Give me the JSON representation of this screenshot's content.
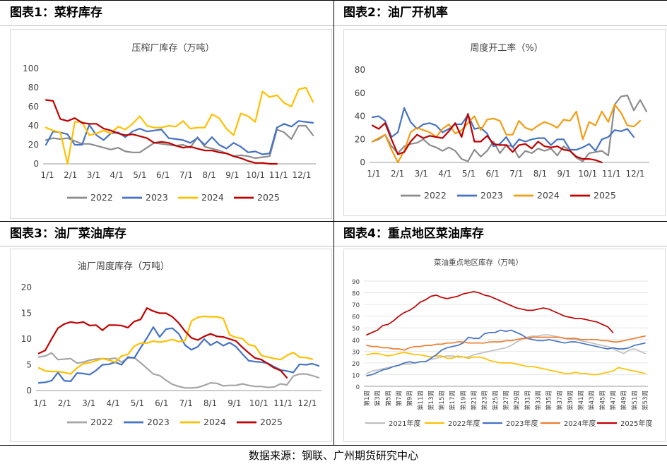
{
  "panels": [
    {
      "title": "图表1：菜籽库存"
    },
    {
      "title": "图表2：油厂开机率"
    },
    {
      "title": "图表3：油厂菜油库存"
    },
    {
      "title": "图表4：重点地区菜油库存"
    }
  ],
  "source": "数据来源：钢联、广州期货研究中心",
  "chart_data": [
    {
      "type": "line",
      "title": "压榨厂库存（万吨）",
      "ylim": [
        0,
        100
      ],
      "yticks": [
        "0",
        "20",
        "40",
        "60",
        "80",
        "100"
      ],
      "xticks": [
        "1/1",
        "2/1",
        "3/1",
        "4/1",
        "5/1",
        "6/1",
        "7/1",
        "8/1",
        "9/1",
        "10/1",
        "11/1",
        "12/1"
      ],
      "series": [
        {
          "name": "2022",
          "color": "#8c8c8c",
          "values": [
            25,
            27,
            26,
            27,
            24,
            21,
            21,
            19,
            17,
            15,
            17,
            13,
            12,
            12,
            17,
            22,
            21,
            20,
            19,
            20,
            17,
            28,
            18,
            16,
            14,
            11,
            8,
            9,
            8,
            6,
            7,
            8,
            36,
            33,
            26,
            40,
            40,
            30
          ]
        },
        {
          "name": "2023",
          "color": "#4472c4",
          "values": [
            20,
            34,
            33,
            31,
            20,
            20,
            41,
            30,
            25,
            32,
            33,
            28,
            34,
            37,
            34,
            35,
            36,
            27,
            26,
            25,
            22,
            27,
            20,
            28,
            20,
            16,
            22,
            18,
            12,
            13,
            10,
            11,
            38,
            42,
            39,
            45,
            44,
            43
          ]
        },
        {
          "name": "2024",
          "color": "#ffc000",
          "values": [
            38,
            35,
            33,
            0,
            44,
            44,
            30,
            32,
            35,
            32,
            39,
            36,
            42,
            50,
            40,
            38,
            38,
            40,
            39,
            45,
            37,
            38,
            38,
            52,
            48,
            37,
            30,
            53,
            50,
            44,
            76,
            70,
            72,
            64,
            60,
            78,
            80,
            65
          ]
        },
        {
          "name": "2025",
          "color": "#c00000",
          "values": [
            67,
            66,
            47,
            45,
            48,
            43,
            42,
            42,
            37,
            35,
            32,
            30,
            31,
            29,
            27,
            22,
            23,
            22,
            19,
            17,
            18,
            16,
            14,
            14,
            12,
            11,
            8,
            6,
            3,
            1,
            1,
            0,
            0
          ]
        }
      ]
    },
    {
      "type": "line",
      "title": "周度开工率（%）",
      "ylim": [
        0,
        80
      ],
      "yticks": [
        "0",
        "20",
        "40",
        "60",
        "80"
      ],
      "xticks": [
        "1/1",
        "2/1",
        "3/1",
        "4/1",
        "5/1",
        "6/1",
        "7/1",
        "8/1",
        "9/1",
        "10/1",
        "11/1",
        "12/1"
      ],
      "series": [
        {
          "name": "2022",
          "color": "#8c8c8c",
          "values": [
            18,
            20,
            24,
            14,
            8,
            14,
            16,
            17,
            20,
            15,
            13,
            10,
            13,
            10,
            3,
            1,
            11,
            5,
            10,
            18,
            8,
            15,
            14,
            4,
            10,
            8,
            12,
            10,
            12,
            6,
            14,
            10,
            4,
            1,
            8,
            9,
            10,
            6,
            50,
            57,
            58,
            45,
            54,
            44
          ]
        },
        {
          "name": "2023",
          "color": "#4472c4",
          "values": [
            39,
            40,
            36,
            22,
            26,
            47,
            35,
            29,
            33,
            34,
            32,
            26,
            29,
            33,
            33,
            41,
            29,
            30,
            25,
            14,
            16,
            22,
            13,
            20,
            18,
            20,
            21,
            21,
            15,
            20,
            20,
            11,
            11,
            13,
            16,
            10,
            20,
            22,
            28,
            27,
            29,
            22
          ]
        },
        {
          "name": "2024",
          "color": "#f39c12",
          "values": [
            18,
            21,
            24,
            11,
            0,
            10,
            26,
            30,
            28,
            26,
            22,
            29,
            33,
            25,
            28,
            34,
            40,
            28,
            37,
            38,
            36,
            24,
            24,
            36,
            30,
            28,
            32,
            35,
            33,
            30,
            37,
            36,
            44,
            20,
            35,
            32,
            44,
            35,
            50,
            43,
            32,
            31,
            36
          ]
        },
        {
          "name": "2025",
          "color": "#c00000",
          "values": [
            32,
            29,
            34,
            20,
            7,
            9,
            18,
            24,
            21,
            23,
            22,
            21,
            27,
            34,
            22,
            42,
            18,
            18,
            23,
            16,
            15,
            15,
            9,
            15,
            16,
            12,
            18,
            14,
            13,
            14,
            11,
            10,
            5,
            3,
            3,
            2,
            0
          ]
        }
      ]
    },
    {
      "type": "line",
      "title": "油厂周度库存（万吨）",
      "ylim": [
        0,
        20
      ],
      "yticks": [
        "0",
        "5",
        "10",
        "15",
        "20"
      ],
      "xticks": [
        "1/1",
        "2/1",
        "3/1",
        "4/1",
        "5/1",
        "6/1",
        "7/1",
        "8/1",
        "9/1",
        "10/1",
        "11/1",
        "12/1"
      ],
      "series": [
        {
          "name": "2022",
          "color": "#a6a6a6",
          "values": [
            6.5,
            6.7,
            7.3,
            6.0,
            6.1,
            6.2,
            5.3,
            5.5,
            5.9,
            6.1,
            6.2,
            6.1,
            6.3,
            5.5,
            6.3,
            6.4,
            5.4,
            4.3,
            3.2,
            2.9,
            2.0,
            1.2,
            0.8,
            0.5,
            0.5,
            0.6,
            1.0,
            1.5,
            1.4,
            0.9,
            1.0,
            1.0,
            1.3,
            1.0,
            0.8,
            0.8,
            0.6,
            0.7,
            1.3,
            1.1,
            2.8,
            3.2,
            3.2,
            2.9,
            2.5
          ]
        },
        {
          "name": "2023",
          "color": "#4472c4",
          "values": [
            1.5,
            1.6,
            1.9,
            3.5,
            1.9,
            1.8,
            3.4,
            3.3,
            3.1,
            3.9,
            5.0,
            5.1,
            5.5,
            5.0,
            6.5,
            6.3,
            8.3,
            10.2,
            12.3,
            10.4,
            11.9,
            12.1,
            11.0,
            8.8,
            7.9,
            8.5,
            10.0,
            8.8,
            9.5,
            8.7,
            9.3,
            8.5,
            7.1,
            5.8,
            5.6,
            5.5,
            5.3,
            4.6,
            4.0,
            3.8,
            3.5,
            5.1,
            5.0,
            5.2,
            4.8
          ]
        },
        {
          "name": "2024",
          "color": "#ffc000",
          "values": [
            4.4,
            3.8,
            3.7,
            3.7,
            3.5,
            3.2,
            4.4,
            5.2,
            5.4,
            5.8,
            6.2,
            5.9,
            5.5,
            6.7,
            7.0,
            8.6,
            9.2,
            9.2,
            9.6,
            9.4,
            9.6,
            9.9,
            9.5,
            9.7,
            13.5,
            14.2,
            14.4,
            14.3,
            14.3,
            14.0,
            10.8,
            10.3,
            10.1,
            8.9,
            8.6,
            6.8,
            6.5,
            6.2,
            6.0,
            6.8,
            7.4,
            6.5,
            6.4,
            6.1
          ]
        },
        {
          "name": "2025",
          "color": "#c00000",
          "values": [
            7.2,
            7.8,
            10.0,
            12.1,
            12.9,
            13.3,
            13.1,
            13.3,
            12.6,
            12.7,
            11.7,
            12.7,
            12.7,
            12.6,
            12.2,
            13.4,
            13.8,
            16.0,
            15.4,
            15.0,
            15.0,
            14.3,
            13.1,
            11.5,
            10.2,
            9.8,
            10.5,
            11.0,
            10.5,
            10.4,
            10.0,
            9.6,
            8.4,
            7.3,
            6.3,
            6.0,
            5.2,
            4.4,
            3.9,
            2.5
          ]
        }
      ]
    },
    {
      "type": "line",
      "title": "菜油重点地区库存（万吨）",
      "ylim": [
        0,
        90
      ],
      "yticks": [
        "0",
        "10",
        "20",
        "30",
        "40",
        "50",
        "60",
        "70",
        "80",
        "90"
      ],
      "xticks": [
        "第1周",
        "第3周",
        "第5周",
        "第7周",
        "第9周",
        "第11周",
        "第13周",
        "第15周",
        "第17周",
        "第19周",
        "第21周",
        "第23周",
        "第25周",
        "第27周",
        "第29周",
        "第31周",
        "第33周",
        "第35周",
        "第37周",
        "第39周",
        "第41周",
        "第43周",
        "第45周",
        "第47周",
        "第49周",
        "第51周",
        "第53周"
      ],
      "series": [
        {
          "name": "2021年度",
          "color": "#bfbfbf",
          "values": [
            11,
            13,
            14,
            15,
            16,
            17,
            18,
            19,
            19,
            20,
            21,
            21,
            23,
            24,
            25,
            26,
            26,
            25,
            25,
            25,
            27,
            28,
            29,
            30,
            31,
            32,
            33,
            35,
            38,
            40,
            42,
            43,
            43,
            44,
            44,
            43,
            42,
            41,
            40,
            40,
            39,
            38,
            37,
            36,
            35,
            34,
            32,
            30,
            28,
            31,
            32,
            30,
            28
          ]
        },
        {
          "name": "2022年度",
          "color": "#ffc000",
          "values": [
            27,
            28,
            28,
            27,
            26,
            27,
            28,
            29,
            28,
            27,
            27,
            26,
            25,
            26,
            26,
            24,
            24,
            26,
            25,
            24,
            25,
            25,
            24,
            22,
            21,
            20,
            20,
            20,
            19,
            18,
            17,
            17,
            16,
            15,
            14,
            13,
            12,
            11,
            11,
            12,
            11,
            11,
            10,
            10,
            11,
            12,
            13,
            16,
            15,
            14,
            13,
            12,
            11
          ]
        },
        {
          "name": "2023年度",
          "color": "#4472c4",
          "values": [
            9,
            10,
            12,
            14,
            15,
            17,
            18,
            20,
            21,
            20,
            21,
            21,
            24,
            27,
            31,
            33,
            34,
            35,
            37,
            42,
            41,
            41,
            45,
            46,
            46,
            48,
            47,
            48,
            46,
            44,
            41,
            40,
            39,
            39,
            40,
            39,
            38,
            37,
            38,
            38,
            37,
            36,
            35,
            34,
            33,
            32,
            33,
            32,
            32,
            33,
            35,
            36,
            37
          ]
        },
        {
          "name": "2024年度",
          "color": "#ed7d31",
          "values": [
            35,
            34,
            34,
            33,
            33,
            32,
            32,
            31,
            33,
            34,
            34,
            35,
            35,
            36,
            36,
            37,
            37,
            38,
            38,
            37,
            37,
            37,
            37,
            38,
            38,
            38,
            39,
            39,
            40,
            41,
            41,
            42,
            42,
            42,
            42,
            42,
            42,
            41,
            41,
            41,
            40,
            40,
            40,
            40,
            39,
            39,
            38,
            38,
            39,
            40,
            41,
            42,
            43
          ]
        },
        {
          "name": "2025年度",
          "color": "#c00000",
          "values": [
            44,
            46,
            48,
            52,
            53,
            56,
            60,
            63,
            65,
            68,
            72,
            74,
            77,
            78,
            76,
            75,
            76,
            77,
            79,
            80,
            81,
            80,
            78,
            77,
            75,
            73,
            71,
            69,
            67,
            66,
            65,
            65,
            66,
            67,
            66,
            64,
            62,
            60,
            59,
            58,
            58,
            57,
            56,
            55,
            53,
            51,
            46
          ]
        }
      ]
    }
  ]
}
